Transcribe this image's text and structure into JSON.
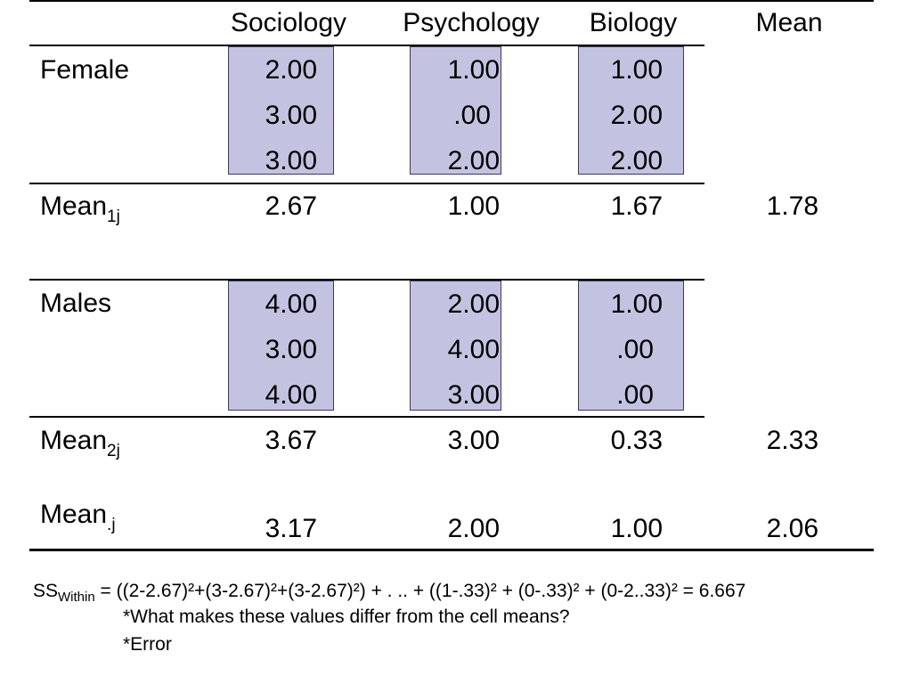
{
  "columns": [
    "Sociology",
    "Psychology",
    "Biology",
    "Mean"
  ],
  "female": {
    "label": "Female",
    "cells": [
      [
        "2.00",
        "3.00",
        "3.00"
      ],
      [
        "1.00",
        ".00",
        "2.00"
      ],
      [
        "1.00",
        "2.00",
        "2.00"
      ]
    ],
    "mean_label": "Mean",
    "mean_sub": "1j",
    "means": [
      "2.67",
      "1.00",
      "1.67"
    ],
    "overall": "1.78"
  },
  "males": {
    "label": "Males",
    "cells": [
      [
        "4.00",
        "3.00",
        "4.00"
      ],
      [
        "2.00",
        "4.00",
        "3.00"
      ],
      [
        "1.00",
        ".00",
        ".00"
      ]
    ],
    "mean_label": "Mean",
    "mean_sub": "2j",
    "means": [
      "3.67",
      "3.00",
      "0.33"
    ],
    "overall": "2.33"
  },
  "col_mean": {
    "label": "Mean",
    "sub": ".j",
    "means": [
      "3.17",
      "2.00",
      "1.00"
    ],
    "overall": "2.06"
  },
  "formula": {
    "lhs": "SS",
    "lhs_sub": "Within",
    "rhs": "= ((2-2.67)²+(3-2.67)²+(3-2.67)²) + . .. + ((1-.33)² + (0-.33)² + (0-2..33)² = 6.667"
  },
  "notes": [
    "*What makes these values differ from the cell means?",
    "*Error"
  ],
  "colors": {
    "cell_fill": "#c3c3e1",
    "cell_border": "#3a3a55",
    "text": "#000000"
  }
}
